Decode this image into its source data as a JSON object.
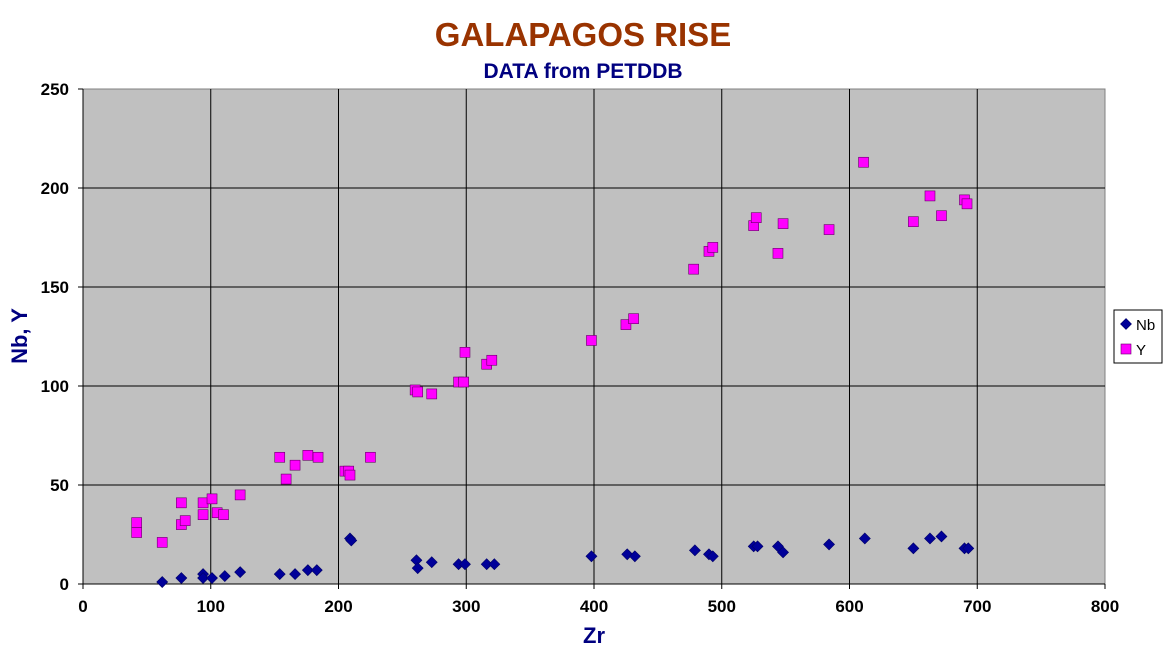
{
  "chart_data": {
    "type": "scatter",
    "title": "GALAPAGOS RISE",
    "subtitle": "DATA from PETDDB",
    "xlabel": "Zr",
    "ylabel": "Nb, Y",
    "xlim": [
      0,
      800
    ],
    "ylim": [
      0,
      250
    ],
    "x_ticks": [
      0,
      100,
      200,
      300,
      400,
      500,
      600,
      700,
      800
    ],
    "y_ticks": [
      0,
      50,
      100,
      150,
      200,
      250
    ],
    "grid": true,
    "legend_position": "right",
    "colors": {
      "title": "#993300",
      "subtitle": "#000080",
      "axis_label": "#000080",
      "plot_background": "#c0c0c0",
      "nb": "#000099",
      "y": "#ff00ff"
    },
    "series": [
      {
        "name": "Nb",
        "marker": "diamond",
        "points": [
          [
            62,
            1
          ],
          [
            77,
            3
          ],
          [
            94,
            5
          ],
          [
            94,
            3
          ],
          [
            101,
            3
          ],
          [
            111,
            4
          ],
          [
            123,
            6
          ],
          [
            154,
            5
          ],
          [
            166,
            5
          ],
          [
            176,
            7
          ],
          [
            183,
            7
          ],
          [
            209,
            23
          ],
          [
            210,
            22
          ],
          [
            261,
            12
          ],
          [
            262,
            8
          ],
          [
            273,
            11
          ],
          [
            294,
            10
          ],
          [
            299,
            10
          ],
          [
            316,
            10
          ],
          [
            322,
            10
          ],
          [
            398,
            14
          ],
          [
            426,
            15
          ],
          [
            432,
            14
          ],
          [
            479,
            17
          ],
          [
            490,
            15
          ],
          [
            493,
            14
          ],
          [
            525,
            19
          ],
          [
            528,
            19
          ],
          [
            544,
            19
          ],
          [
            548,
            16
          ],
          [
            584,
            20
          ],
          [
            612,
            23
          ],
          [
            650,
            18
          ],
          [
            663,
            23
          ],
          [
            672,
            24
          ],
          [
            690,
            18
          ],
          [
            693,
            18
          ]
        ]
      },
      {
        "name": "Y",
        "marker": "square",
        "points": [
          [
            42,
            31
          ],
          [
            42,
            26
          ],
          [
            62,
            21
          ],
          [
            77,
            41
          ],
          [
            77,
            30
          ],
          [
            80,
            32
          ],
          [
            94,
            41
          ],
          [
            94,
            35
          ],
          [
            101,
            43
          ],
          [
            105,
            36
          ],
          [
            110,
            35
          ],
          [
            123,
            45
          ],
          [
            154,
            64
          ],
          [
            159,
            53
          ],
          [
            166,
            60
          ],
          [
            176,
            65
          ],
          [
            184,
            64
          ],
          [
            205,
            57
          ],
          [
            208,
            57
          ],
          [
            209,
            55
          ],
          [
            225,
            64
          ],
          [
            260,
            98
          ],
          [
            262,
            97
          ],
          [
            273,
            96
          ],
          [
            294,
            102
          ],
          [
            298,
            102
          ],
          [
            299,
            117
          ],
          [
            316,
            111
          ],
          [
            320,
            113
          ],
          [
            398,
            123
          ],
          [
            425,
            131
          ],
          [
            431,
            134
          ],
          [
            478,
            159
          ],
          [
            490,
            168
          ],
          [
            493,
            170
          ],
          [
            525,
            181
          ],
          [
            527,
            185
          ],
          [
            544,
            167
          ],
          [
            548,
            182
          ],
          [
            584,
            179
          ],
          [
            611,
            213
          ],
          [
            650,
            183
          ],
          [
            663,
            196
          ],
          [
            672,
            186
          ],
          [
            690,
            194
          ],
          [
            692,
            192
          ]
        ]
      }
    ]
  }
}
